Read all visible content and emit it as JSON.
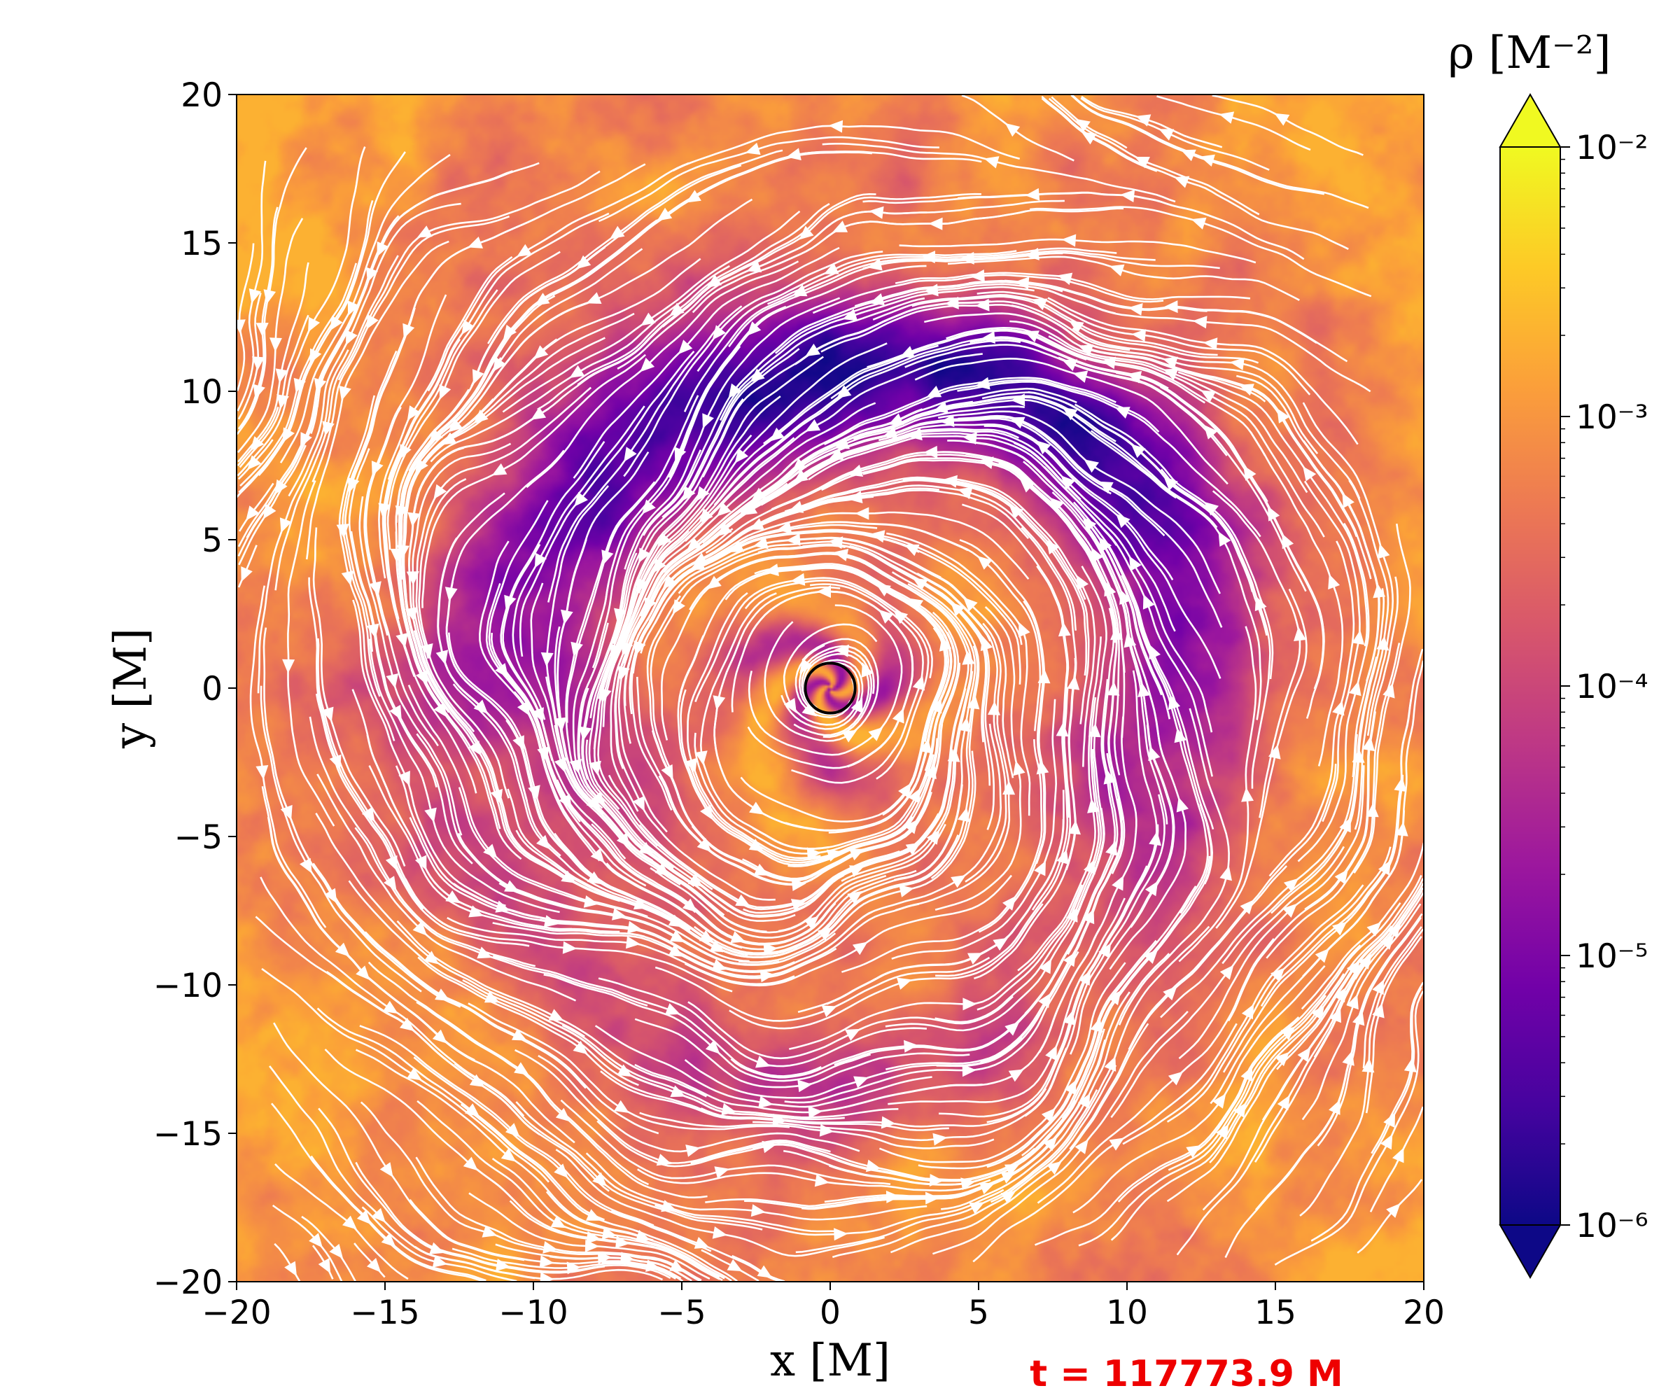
{
  "chart_data": {
    "type": "heatmap",
    "subtype": "2d density map with velocity streamlines",
    "xlabel": "x [M]",
    "ylabel": "y [M]",
    "xlim": [
      -20,
      20
    ],
    "ylim": [
      -20,
      20
    ],
    "x_ticks": [
      "−20",
      "−15",
      "−10",
      "−5",
      "0",
      "5",
      "10",
      "15",
      "20"
    ],
    "y_ticks": [
      "20",
      "15",
      "10",
      "5",
      "0",
      "−5",
      "−10",
      "−15",
      "−20"
    ],
    "colorbar": {
      "label": "ρ [M⁻²]",
      "scale": "log",
      "colormap": "plasma",
      "range": [
        1e-06,
        0.01
      ],
      "extend": "both",
      "ticks": [
        "10⁻²",
        "10⁻³",
        "10⁻⁴",
        "10⁻⁵",
        "10⁻⁶"
      ],
      "colors": [
        "#0d0887",
        "#46039f",
        "#7201a8",
        "#9c179e",
        "#bd3786",
        "#d8576b",
        "#ed7953",
        "#fb9f3a",
        "#fdca26",
        "#f0f921"
      ]
    },
    "field": {
      "description_values": "log10 density: high (~1e-3) in outer regions, low (~1e-6) in a crescent-shaped cavity wrapping around the center",
      "outer_log_rho": -3.1,
      "cavity_log_rho": -5.9,
      "center": [
        0,
        0
      ]
    },
    "streamlines": {
      "color": "#ffffff",
      "pattern": "counter-clockwise inspiral around the origin"
    },
    "horizon_circle": {
      "center": [
        0,
        0
      ],
      "radius": 0.8,
      "color": "#000000"
    },
    "annotation": "t = 117773.9 M",
    "grid": false
  }
}
